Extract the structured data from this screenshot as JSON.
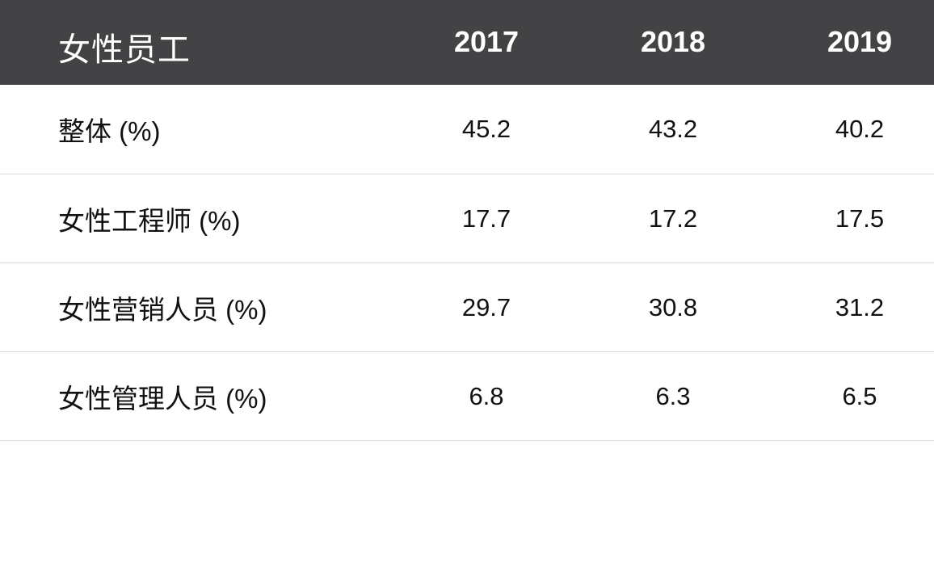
{
  "table": {
    "header": {
      "title": "女性员工",
      "years": [
        "2017",
        "2018",
        "2019"
      ]
    },
    "rows": [
      {
        "label": "整体 (%)",
        "values": [
          "45.2",
          "43.2",
          "40.2"
        ]
      },
      {
        "label": "女性工程师 (%)",
        "values": [
          "17.7",
          "17.2",
          "17.5"
        ]
      },
      {
        "label": "女性营销人员 (%)",
        "values": [
          "29.7",
          "30.8",
          "31.2"
        ]
      },
      {
        "label": "女性管理人员 (%)",
        "values": [
          "6.8",
          "6.3",
          "6.5"
        ]
      }
    ]
  },
  "colors": {
    "header_background": "#434346",
    "header_text": "#ffffff",
    "body_text": "#111111",
    "row_divider": "#dcdcdc"
  }
}
